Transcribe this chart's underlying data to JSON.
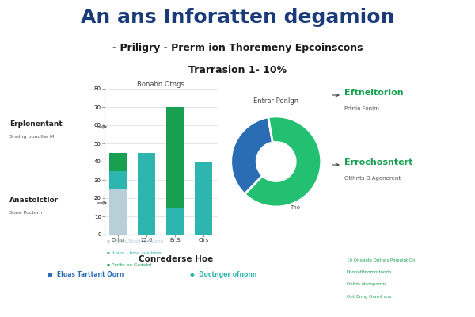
{
  "title_main": "An ans Inforatten degamion",
  "subtitle1": "- Priligry - Prerm ion Thoremeny Epcoinscons",
  "subtitle2": "Trarrasion 1- 10%",
  "bar_title": "Bonabn Otngs",
  "pie_title": "Entrar Ponlgn",
  "bar_categories": [
    "Orlio",
    "22.0",
    "Br.S",
    "Cirs"
  ],
  "bar_color1": "#b8ced8",
  "bar_color2": "#2db5b0",
  "bar_color3": "#18a050",
  "pie_values": [
    35,
    65
  ],
  "pie_colors": [
    "#2a6db5",
    "#22c070"
  ],
  "donut_inner": 0.42,
  "legend_labels": [
    "Frnpns Stunt chnsumo",
    "It ann - bmo sve bnm",
    "Porltn on Godolnl"
  ],
  "legend_colors": [
    "#b8ced8",
    "#2db5b0",
    "#18a050"
  ],
  "footer_title": "Conrederse Hoe",
  "footer_item1": "Eluas Tarttant Oorn",
  "footer_item2": "Doctnger ofnonn",
  "footer_color1": "#2a6db5",
  "footer_color2": "#2db5b0",
  "annot_left1": "Erplonentant",
  "annot_left1_sub": "Snolng ponolhe M",
  "annot_left2": "Anastolctlor",
  "annot_left2_sub": "Sone Poctorn",
  "annot_right1": "Eftneltorion",
  "annot_right1_sub": "Prtnle Fonim",
  "annot_right2": "Errochosntert",
  "annot_right2_sub": "Otlhnts B Agonerent",
  "annot_tho": "Tho",
  "bg_color": "#ffffff",
  "title_color": "#1a3a7a",
  "subtitle_color": "#1a1a1a",
  "green_text_color": "#18a050",
  "bar_b1": [
    25,
    0,
    0,
    0
  ],
  "bar_b2": [
    10,
    45,
    15,
    40
  ],
  "bar_b3": [
    10,
    0,
    55,
    0
  ],
  "bar_ylim": [
    0,
    80
  ],
  "bar_yticks": [
    0,
    10,
    20,
    30,
    40,
    50,
    60,
    70,
    80
  ],
  "right_texts": [
    "10 Onoants Ontnos Plneolnt Onl",
    "Doonotltnomottondo",
    "Onltm otroopontn",
    "Ont Onng Onnnt ons"
  ]
}
